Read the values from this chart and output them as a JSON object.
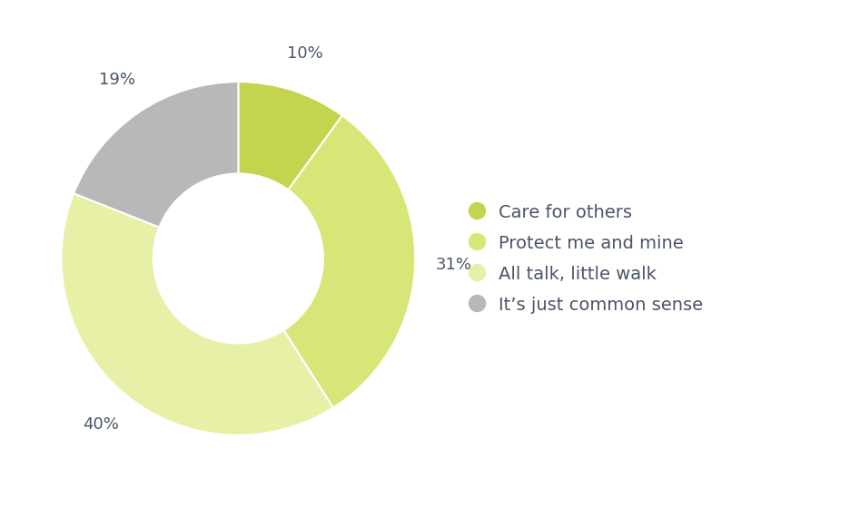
{
  "labels": [
    "Care for others",
    "Protect me and mine",
    "All talk, little walk",
    "It’s just common sense"
  ],
  "values": [
    10,
    31,
    40,
    19
  ],
  "colors": [
    "#c5d44e",
    "#d8e577",
    "#e8f0a8",
    "#b8b8b8"
  ],
  "pct_labels": [
    "10%",
    "31%",
    "40%",
    "19%"
  ],
  "text_color": "#4a5568",
  "background_color": "#ffffff",
  "legend_fontsize": 14,
  "pct_fontsize": 13
}
